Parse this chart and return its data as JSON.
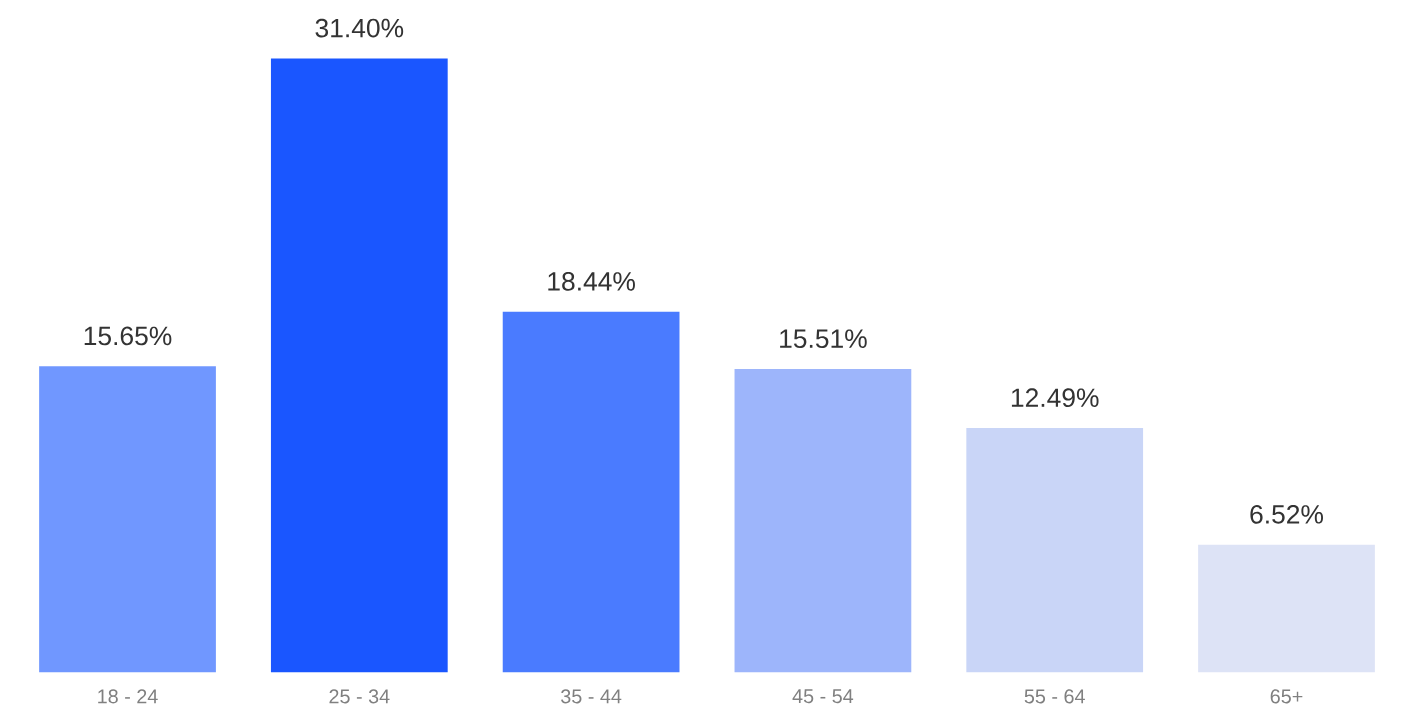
{
  "chart_data": {
    "type": "bar",
    "categories": [
      "18 - 24",
      "25 - 34",
      "35 - 44",
      "45 - 54",
      "55 - 64",
      "65+"
    ],
    "values": [
      15.65,
      31.4,
      18.44,
      15.51,
      12.49,
      6.52
    ],
    "value_labels": [
      "15.65%",
      "31.40%",
      "18.44%",
      "15.51%",
      "12.49%",
      "6.52%"
    ],
    "colors": [
      "#7097ff",
      "#1a56ff",
      "#4a7bff",
      "#9db5fb",
      "#c9d5f7",
      "#dde3f6"
    ]
  }
}
